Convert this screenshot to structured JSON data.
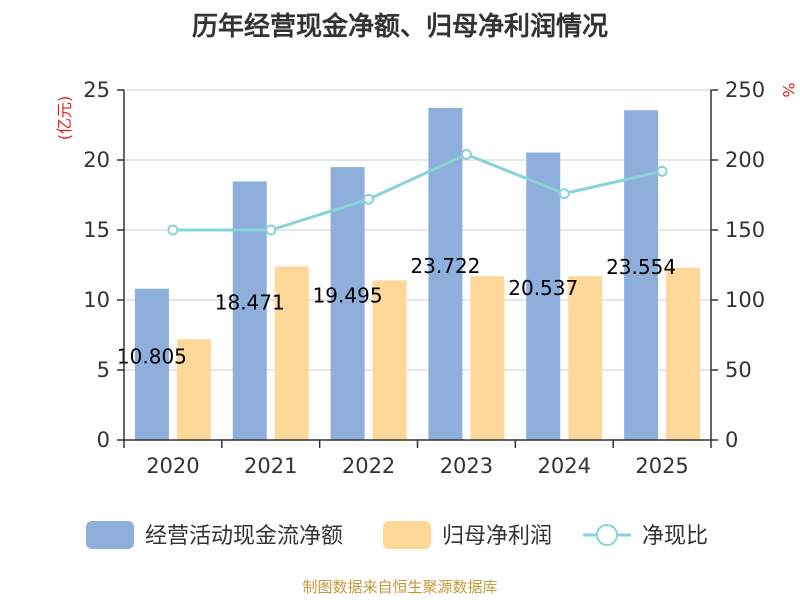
{
  "chart_data": {
    "type": "bar",
    "title": "历年经营现金净额、归母净利润情况",
    "categories": [
      "2020",
      "2021",
      "2022",
      "2023",
      "2024",
      "2025"
    ],
    "series": [
      {
        "name": "经营活动现金流净额",
        "kind": "bar",
        "axis": "left",
        "color": "#8eaedb",
        "values": [
          10.805,
          18.471,
          19.495,
          23.722,
          20.537,
          23.554
        ],
        "labels": [
          "10.805",
          "18.471",
          "19.495",
          "23.722",
          "20.537",
          "23.554"
        ]
      },
      {
        "name": "归母净利润",
        "kind": "bar",
        "axis": "left",
        "color": "#fed899",
        "values": [
          7.2,
          12.4,
          11.4,
          11.7,
          11.7,
          12.3
        ]
      },
      {
        "name": "净现比",
        "kind": "line",
        "axis": "right",
        "color": "#88d3d8",
        "values": [
          150,
          150,
          172,
          204,
          176,
          192
        ]
      }
    ],
    "y_left": {
      "unit": "(亿元)",
      "min": 0,
      "max": 25,
      "ticks": [
        0,
        5,
        10,
        15,
        20,
        25
      ]
    },
    "y_right": {
      "unit": "%",
      "min": 0,
      "max": 250,
      "ticks": [
        0,
        50,
        100,
        150,
        200,
        250
      ]
    },
    "grid": true,
    "legend_position": "bottom",
    "source": "制图数据来自恒生聚源数据库"
  }
}
